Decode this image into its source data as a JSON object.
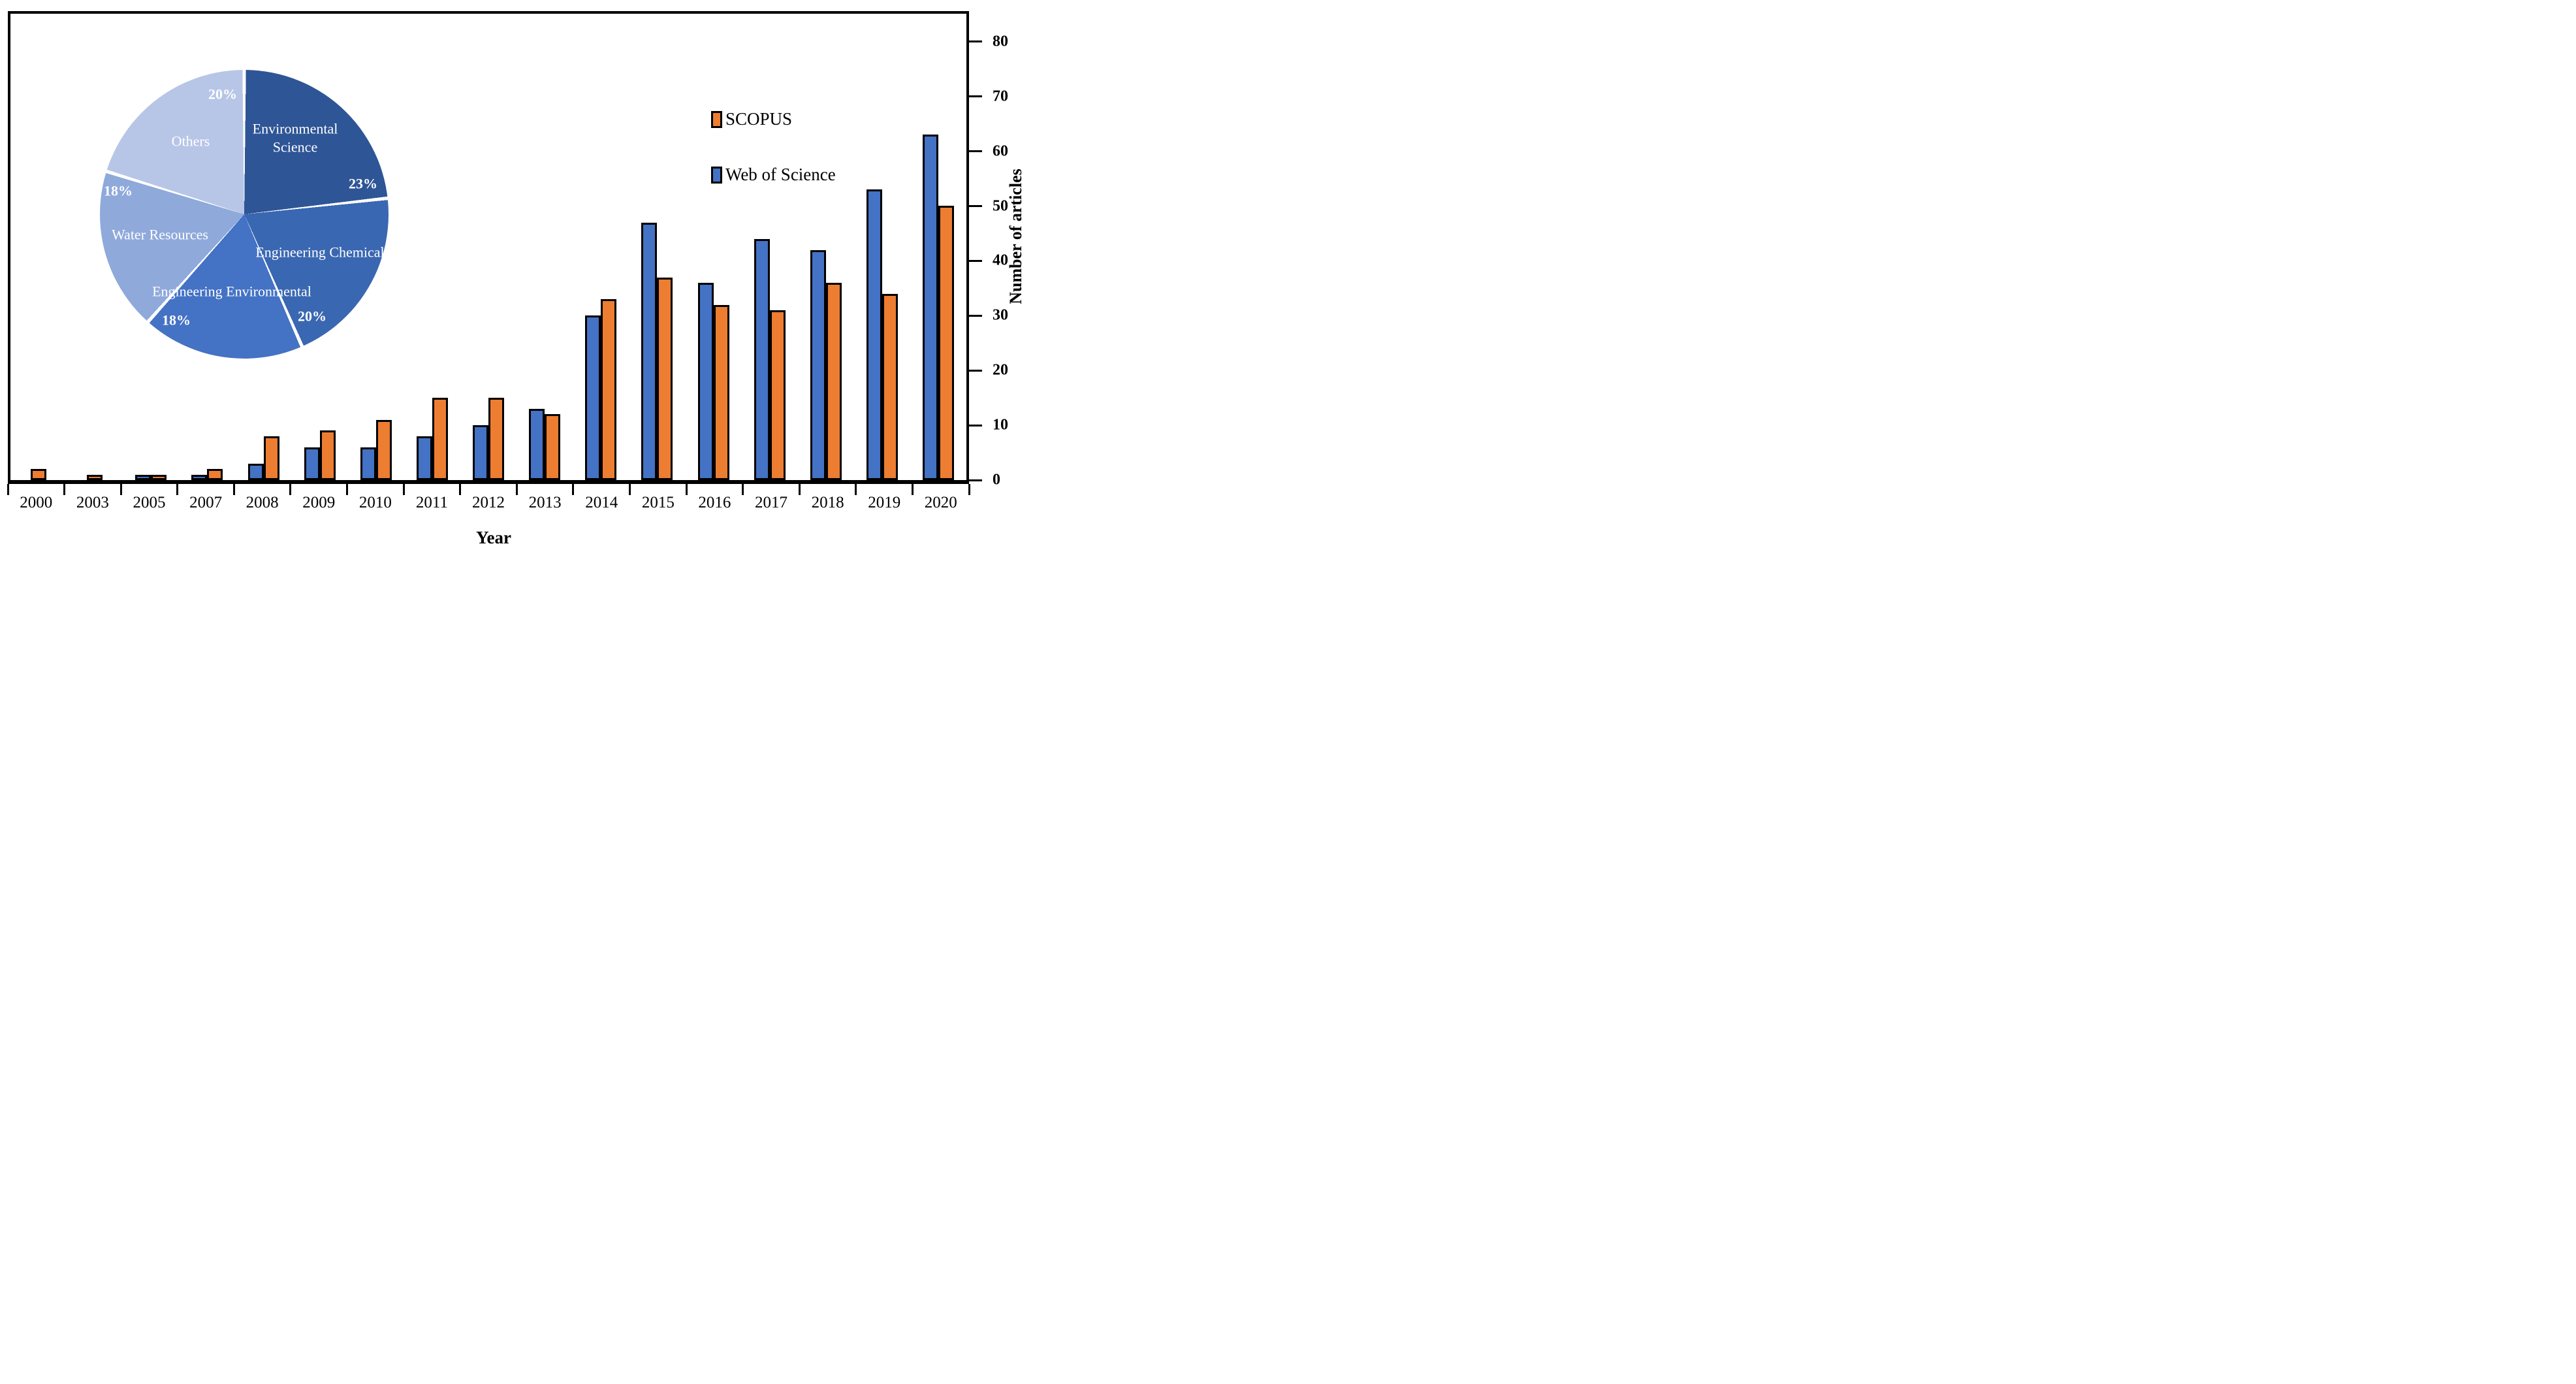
{
  "legend": {
    "items": [
      {
        "label": "SCOPUS",
        "color": "#ED7D31"
      },
      {
        "label": "Web of Science",
        "color": "#4472C4"
      }
    ]
  },
  "chart_data": [
    {
      "type": "bar",
      "title": "",
      "xlabel": "Year",
      "ylabel": "Number of articles",
      "ylim": [
        0,
        80
      ],
      "yticks": [
        0,
        10,
        20,
        30,
        40,
        50,
        60,
        70,
        80
      ],
      "grid": false,
      "legend_position": "upper-right",
      "bar_outline": "#000000",
      "categories": [
        "2000",
        "2003",
        "2005",
        "2007",
        "2008",
        "2009",
        "2010",
        "2011",
        "2012",
        "2013",
        "2014",
        "2015",
        "2016",
        "2017",
        "2018",
        "2019",
        "2020"
      ],
      "series": [
        {
          "name": "SCOPUS",
          "color": "#ED7D31",
          "values": [
            2,
            1,
            1,
            2,
            8,
            9,
            11,
            15,
            15,
            12,
            33,
            37,
            32,
            31,
            36,
            34,
            50
          ]
        },
        {
          "name": "Web of Science",
          "color": "#4472C4",
          "values": [
            0,
            0,
            1,
            1,
            3,
            6,
            6,
            8,
            10,
            13,
            30,
            47,
            36,
            44,
            42,
            53,
            63
          ]
        }
      ]
    },
    {
      "type": "pie",
      "direction": "clockwise",
      "start_angle_deg": 0,
      "label_color": "#ffffff",
      "slices": [
        {
          "label": "Environmental Science",
          "pct": 23,
          "color": "#2E5596"
        },
        {
          "label": "Engineering Chemical",
          "pct": 20,
          "color": "#3A67B1"
        },
        {
          "label": "Engineering Environmental",
          "pct": 18,
          "color": "#4472C4"
        },
        {
          "label": "Water Resources",
          "pct": 18,
          "color": "#8FA9DB"
        },
        {
          "label": "Others",
          "pct": 20,
          "color": "#B7C6E7"
        }
      ]
    }
  ]
}
